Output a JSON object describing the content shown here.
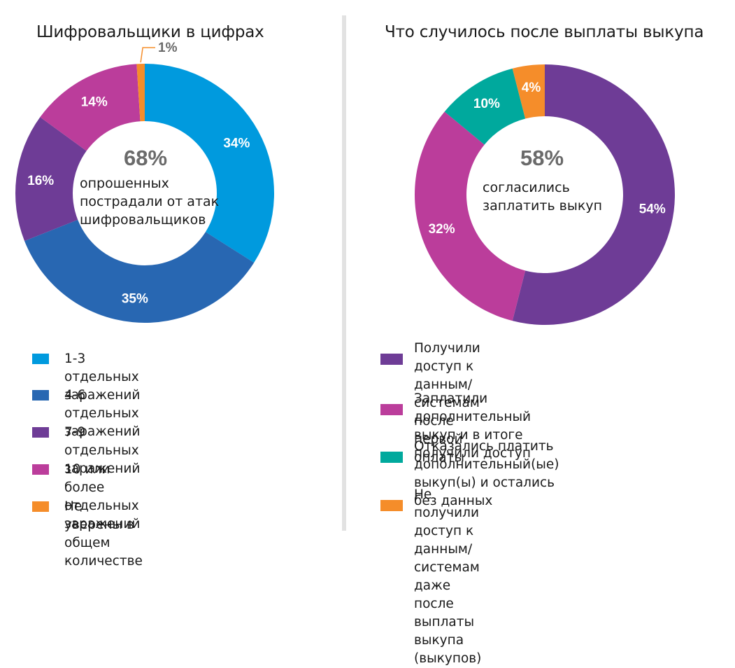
{
  "charts": [
    {
      "title": "Шифровальщики в цифрах",
      "center_value": "68%",
      "center_text": "опрошенных\nпострадали от атак\nшифровальщиков",
      "legend": [
        {
          "label": "1-3 отдельных заражений",
          "color": "#009ADE"
        },
        {
          "label": "4-6 отдельных заражений",
          "color": "#2867B2"
        },
        {
          "label": "7-9 отдельных заражений",
          "color": "#6E3C96"
        },
        {
          "label": "10 или более отдельных заражений",
          "color": "#BB3D9B"
        },
        {
          "label": "Не уверены в общем количестве",
          "color": "#F58D2A"
        }
      ]
    },
    {
      "title": "Что случилось после выплаты выкупа",
      "center_value": "58%",
      "center_text": "согласились\nзаплатить выкуп",
      "legend": [
        {
          "label": "Получили доступ к данным/системам после\nпервой оплаты",
          "color": "#6E3C96"
        },
        {
          "label": "Заплатили дополнительный выкуп и в итоге\nполучили доступ",
          "color": "#BB3D9B"
        },
        {
          "label": "Отказались платить дополнительный(ые)\nвыкуп(ы) и остались без данных",
          "color": "#00A99D"
        },
        {
          "label": "Не получили доступ к данным/системам\nдаже после выплаты выкупа (выкупов)",
          "color": "#F58D2A"
        }
      ]
    }
  ],
  "chart_data": [
    {
      "type": "pie",
      "title": "Шифровальщики в цифрах",
      "categories": [
        "1-3 отдельных заражений",
        "4-6 отдельных заражений",
        "7-9 отдельных заражений",
        "10 или более отдельных заражений",
        "Не уверены в общем количестве"
      ],
      "values": [
        34,
        35,
        16,
        14,
        1
      ],
      "value_labels": [
        "34%",
        "35%",
        "16%",
        "14%",
        "1%"
      ],
      "colors": [
        "#009ADE",
        "#2867B2",
        "#6E3C96",
        "#BB3D9B",
        "#F58D2A"
      ],
      "label_colors": [
        "#ffffff",
        "#ffffff",
        "#ffffff",
        "#ffffff",
        "#6a6a6a"
      ],
      "donut": true,
      "legend_position": "bottom"
    },
    {
      "type": "pie",
      "title": "Что случилось после выплаты выкупа",
      "categories": [
        "Получили доступ к данным/системам после первой оплаты",
        "Заплатили дополнительный выкуп и в итоге получили доступ",
        "Отказались платить дополнительный(ые) выкуп(ы) и остались без данных",
        "Не получили доступ к данным/системам даже после выплаты выкупа (выкупов)"
      ],
      "values": [
        54,
        32,
        10,
        4
      ],
      "value_labels": [
        "54%",
        "32%",
        "10%",
        "4%"
      ],
      "colors": [
        "#6E3C96",
        "#BB3D9B",
        "#00A99D",
        "#F58D2A"
      ],
      "label_colors": [
        "#ffffff",
        "#ffffff",
        "#ffffff",
        "#ffffff"
      ],
      "donut": true,
      "legend_position": "bottom"
    }
  ]
}
